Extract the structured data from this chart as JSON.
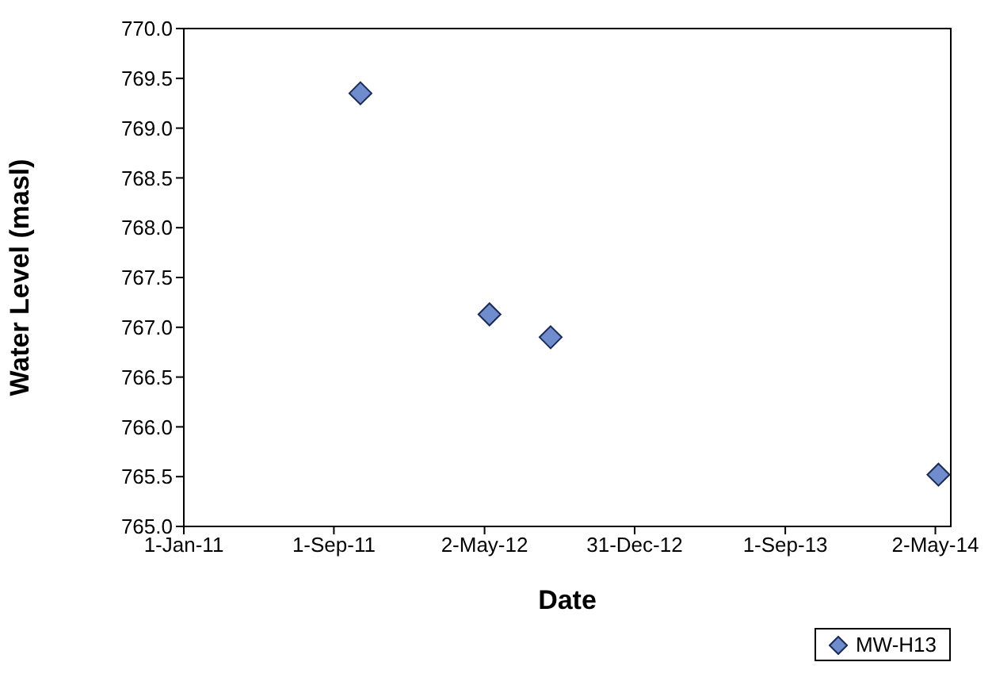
{
  "chart_data": {
    "type": "scatter",
    "xlabel": "Date",
    "ylabel": "Water Level (masl)",
    "x": [
      "2011-10-14",
      "2012-05-10",
      "2012-08-17",
      "2014-05-07"
    ],
    "series": [
      {
        "name": "MW-H13",
        "color": "#6f8ccc",
        "values": [
          769.35,
          767.13,
          766.9,
          765.52
        ]
      }
    ],
    "xlim": [
      "2011-01-01",
      "2014-05-27"
    ],
    "xticks": [
      {
        "value": "2011-01-01",
        "label": "1-Jan-11"
      },
      {
        "value": "2011-09-01",
        "label": "1-Sep-11"
      },
      {
        "value": "2012-05-02",
        "label": "2-May-12"
      },
      {
        "value": "2012-12-31",
        "label": "31-Dec-12"
      },
      {
        "value": "2013-09-01",
        "label": "1-Sep-13"
      },
      {
        "value": "2014-05-02",
        "label": "2-May-14"
      }
    ],
    "ylim": [
      765,
      770
    ],
    "yticks": [
      {
        "value": 765,
        "label": "765.0"
      },
      {
        "value": 765.5,
        "label": "765.5"
      },
      {
        "value": 766,
        "label": "766.0"
      },
      {
        "value": 766.5,
        "label": "766.5"
      },
      {
        "value": 767,
        "label": "767.0"
      },
      {
        "value": 767.5,
        "label": "767.5"
      },
      {
        "value": 768,
        "label": "768.0"
      },
      {
        "value": 768.5,
        "label": "768.5"
      },
      {
        "value": 769,
        "label": "769.0"
      },
      {
        "value": 769.5,
        "label": "769.5"
      },
      {
        "value": 770,
        "label": "770.0"
      }
    ],
    "grid": false,
    "legend": "bottom right",
    "marker": "diamond"
  }
}
